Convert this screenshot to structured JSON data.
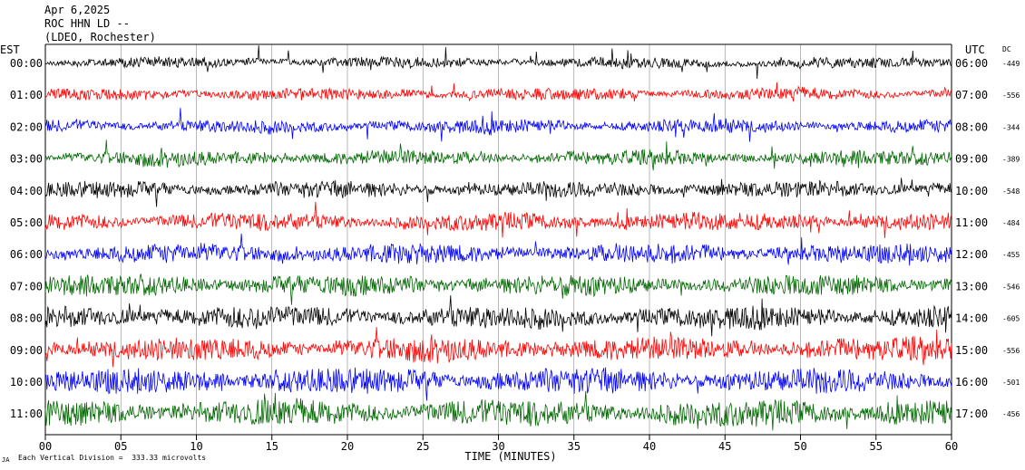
{
  "header": {
    "date": "Apr 6,2025",
    "station": "ROC HHN LD --",
    "network": "(LDEO, Rochester)"
  },
  "chart_data": {
    "type": "line",
    "title": "",
    "xlabel": "TIME (MINUTES)",
    "xlim": [
      0,
      60
    ],
    "x_ticks": [
      "00",
      "05",
      "10",
      "15",
      "20",
      "25",
      "30",
      "35",
      "40",
      "45",
      "50",
      "55",
      "60"
    ],
    "left_axis_label": "EST",
    "right_axis_label": "UTC",
    "dc_label": "DC",
    "grid": true,
    "series_colors": [
      "#000000",
      "#ff0000",
      "#0000ff",
      "#006600"
    ],
    "traces": [
      {
        "est": "00:00",
        "utc": "06:00",
        "dc": "-449"
      },
      {
        "est": "01:00",
        "utc": "07:00",
        "dc": "-556"
      },
      {
        "est": "02:00",
        "utc": "08:00",
        "dc": "-344"
      },
      {
        "est": "03:00",
        "utc": "09:00",
        "dc": "-389"
      },
      {
        "est": "04:00",
        "utc": "10:00",
        "dc": "-548"
      },
      {
        "est": "05:00",
        "utc": "11:00",
        "dc": "-484"
      },
      {
        "est": "06:00",
        "utc": "12:00",
        "dc": "-455"
      },
      {
        "est": "07:00",
        "utc": "13:00",
        "dc": "-546"
      },
      {
        "est": "08:00",
        "utc": "14:00",
        "dc": "-605"
      },
      {
        "est": "09:00",
        "utc": "15:00",
        "dc": "-556"
      },
      {
        "est": "10:00",
        "utc": "16:00",
        "dc": "-501"
      },
      {
        "est": "11:00",
        "utc": "17:00",
        "dc": "-456"
      }
    ],
    "footnote": "Each Vertical Division =  333.33 microvolts",
    "footnote_mark": "JA"
  }
}
